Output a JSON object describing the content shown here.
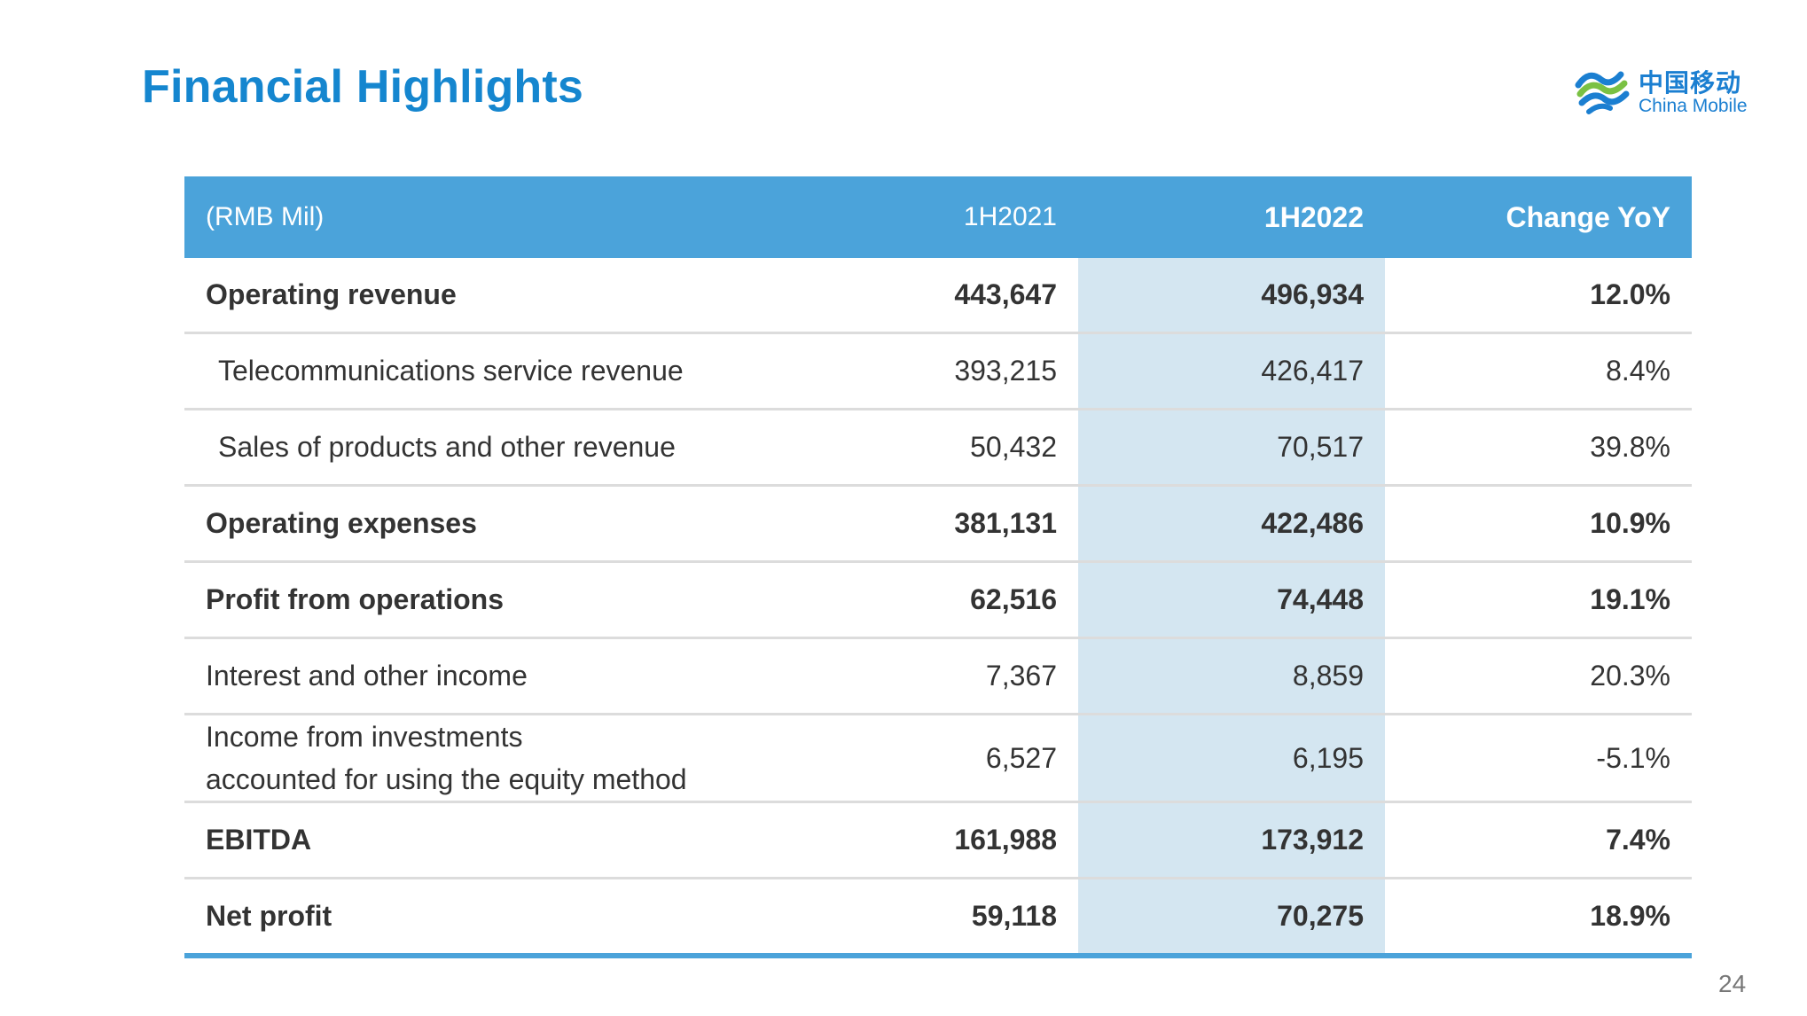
{
  "slide": {
    "title": "Financial Highlights",
    "page_number": "24"
  },
  "logo": {
    "text_cn": "中国移动",
    "text_en": "China Mobile",
    "color": "#1b7fd1"
  },
  "table": {
    "headers": [
      "(RMB Mil)",
      "1H2021",
      "1H2022",
      "Change YoY"
    ],
    "rows": [
      {
        "label": "Operating revenue",
        "v2021": "443,647",
        "v2022": "496,934",
        "change": "12.0%"
      },
      {
        "label": "Telecommunications service revenue",
        "v2021": "393,215",
        "v2022": "426,417",
        "change": "8.4%"
      },
      {
        "label": "Sales of products and other revenue",
        "v2021": "50,432",
        "v2022": "70,517",
        "change": "39.8%"
      },
      {
        "label": "Operating expenses",
        "v2021": "381,131",
        "v2022": "422,486",
        "change": "10.9%"
      },
      {
        "label": "Profit from operations",
        "v2021": "62,516",
        "v2022": "74,448",
        "change": "19.1%"
      },
      {
        "label": "Interest and other income",
        "v2021": "7,367",
        "v2022": "8,859",
        "change": "20.3%"
      },
      {
        "label_line1": "Income from investments",
        "label_line2": "accounted for using the equity method",
        "v2021": "6,527",
        "v2022": "6,195",
        "change": "-5.1%"
      },
      {
        "label": "EBITDA",
        "v2021": "161,988",
        "v2022": "173,912",
        "change": "7.4%"
      },
      {
        "label": "Net profit",
        "v2021": "59,118",
        "v2022": "70,275",
        "change": "18.9%"
      }
    ]
  },
  "colors": {
    "title": "#1586cf",
    "header_bg": "#4ba3da",
    "highlight_column": "#d4e6f1"
  }
}
